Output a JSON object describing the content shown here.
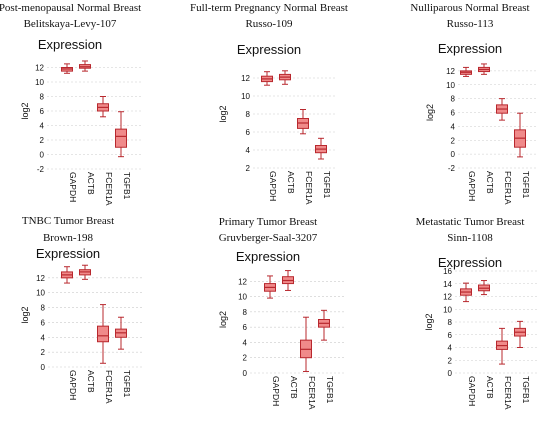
{
  "chart_data": [
    {
      "type": "box",
      "title": [
        "Post-menopausal Normal Breast",
        "Belitskaya-Levy-107"
      ],
      "subtitle": "Expression",
      "ylabel": "log2",
      "ylim": [
        -2,
        14
      ],
      "yticks": [
        -2,
        0,
        2,
        4,
        6,
        8,
        10,
        12
      ],
      "categories": [
        "GAPDH",
        "ACTB",
        "FCER1A",
        "TGFB1"
      ],
      "boxes": [
        {
          "min": 11.2,
          "q1": 11.5,
          "median": 11.8,
          "q3": 12.0,
          "max": 12.5
        },
        {
          "min": 11.5,
          "q1": 11.9,
          "median": 12.1,
          "q3": 12.4,
          "max": 12.9
        },
        {
          "min": 5.2,
          "q1": 6.0,
          "median": 6.5,
          "q3": 7.0,
          "max": 8.0
        },
        {
          "min": -0.3,
          "q1": 1.0,
          "median": 2.5,
          "q3": 3.5,
          "max": 5.9
        }
      ]
    },
    {
      "type": "box",
      "title": [
        "Full-term Pregnancy Normal Breast",
        "Russo-109"
      ],
      "subtitle": "Expression",
      "ylabel": "log2",
      "ylim": [
        2,
        14
      ],
      "yticks": [
        2,
        4,
        6,
        8,
        10,
        12
      ],
      "categories": [
        "GAPDH",
        "ACTB",
        "FCER1A",
        "TGFB1"
      ],
      "boxes": [
        {
          "min": 11.2,
          "q1": 11.6,
          "median": 11.9,
          "q3": 12.2,
          "max": 12.7
        },
        {
          "min": 11.3,
          "q1": 11.8,
          "median": 12.1,
          "q3": 12.4,
          "max": 12.8
        },
        {
          "min": 5.8,
          "q1": 6.4,
          "median": 7.0,
          "q3": 7.5,
          "max": 8.5
        },
        {
          "min": 3.0,
          "q1": 3.7,
          "median": 4.1,
          "q3": 4.5,
          "max": 5.3
        }
      ]
    },
    {
      "type": "box",
      "title": [
        "Nulliparous Normal Breast",
        "Russo-113"
      ],
      "subtitle": "Expression",
      "ylabel": "log2",
      "ylim": [
        -2,
        14
      ],
      "yticks": [
        -2,
        0,
        2,
        4,
        6,
        8,
        10,
        12
      ],
      "categories": [
        "GAPDH",
        "ACTB",
        "FCER1A",
        "TGFB1"
      ],
      "boxes": [
        {
          "min": 11.2,
          "q1": 11.5,
          "median": 11.8,
          "q3": 12.0,
          "max": 12.5
        },
        {
          "min": 11.5,
          "q1": 11.9,
          "median": 12.2,
          "q3": 12.5,
          "max": 13.0
        },
        {
          "min": 4.9,
          "q1": 5.9,
          "median": 6.5,
          "q3": 7.1,
          "max": 8.0
        },
        {
          "min": -0.4,
          "q1": 1.0,
          "median": 2.3,
          "q3": 3.5,
          "max": 5.9
        }
      ]
    },
    {
      "type": "box",
      "title": [
        "TNBC Tumor Breast",
        "Brown-198"
      ],
      "subtitle": "Expression",
      "ylabel": "log2",
      "ylim": [
        0,
        14
      ],
      "yticks": [
        0,
        2,
        4,
        6,
        8,
        10,
        12
      ],
      "categories": [
        "GAPDH",
        "ACTB",
        "FCER1A",
        "TGFB1"
      ],
      "boxes": [
        {
          "min": 11.3,
          "q1": 12.0,
          "median": 12.4,
          "q3": 12.8,
          "max": 13.5
        },
        {
          "min": 11.8,
          "q1": 12.4,
          "median": 12.8,
          "q3": 13.1,
          "max": 13.7
        },
        {
          "min": 0.5,
          "q1": 3.4,
          "median": 4.2,
          "q3": 5.5,
          "max": 8.4
        },
        {
          "min": 2.4,
          "q1": 4.0,
          "median": 4.6,
          "q3": 5.1,
          "max": 6.7
        }
      ]
    },
    {
      "type": "box",
      "title": [
        "Primary Tumor Breast",
        "Gruvberger-Saal-3207"
      ],
      "subtitle": "Expression",
      "ylabel": "log2",
      "ylim": [
        0,
        14
      ],
      "yticks": [
        0,
        2,
        4,
        6,
        8,
        10,
        12
      ],
      "categories": [
        "GAPDH",
        "ACTB",
        "FCER1A",
        "TGFB1"
      ],
      "boxes": [
        {
          "min": 9.8,
          "q1": 10.7,
          "median": 11.2,
          "q3": 11.7,
          "max": 12.7
        },
        {
          "min": 10.8,
          "q1": 11.7,
          "median": 12.1,
          "q3": 12.6,
          "max": 13.4
        },
        {
          "min": 0.2,
          "q1": 2.0,
          "median": 3.1,
          "q3": 4.3,
          "max": 7.3
        },
        {
          "min": 4.3,
          "q1": 6.0,
          "median": 6.5,
          "q3": 7.0,
          "max": 8.2
        }
      ]
    },
    {
      "type": "box",
      "title": [
        "Metastatic Tumor Breast",
        "Sinn-1108"
      ],
      "subtitle": "Expression",
      "ylabel": "log2",
      "ylim": [
        0,
        16
      ],
      "yticks": [
        0,
        2,
        4,
        6,
        8,
        10,
        12,
        14,
        16
      ],
      "categories": [
        "GAPDH",
        "ACTB",
        "FCER1A",
        "TGFB1"
      ],
      "boxes": [
        {
          "min": 11.2,
          "q1": 12.2,
          "median": 12.7,
          "q3": 13.2,
          "max": 14.1
        },
        {
          "min": 12.3,
          "q1": 12.9,
          "median": 13.3,
          "q3": 13.8,
          "max": 14.5
        },
        {
          "min": 1.4,
          "q1": 3.7,
          "median": 4.3,
          "q3": 5.0,
          "max": 7.0
        },
        {
          "min": 4.0,
          "q1": 5.8,
          "median": 6.4,
          "q3": 7.0,
          "max": 8.1
        }
      ]
    }
  ],
  "colors": {
    "box_fill": "#f08a8a",
    "box_stroke": "#b8282e",
    "median": "#b8282e"
  }
}
